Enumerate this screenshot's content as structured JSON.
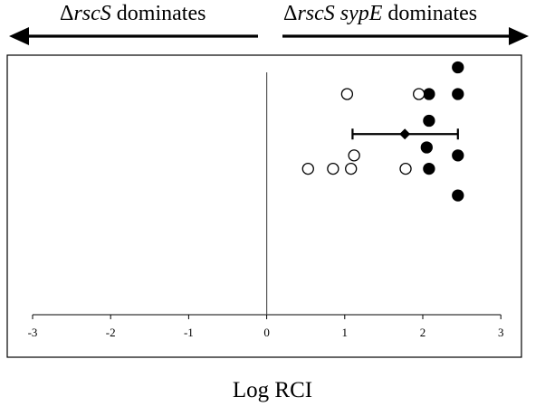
{
  "headers": {
    "left": {
      "delta": "Δ",
      "italic": "rscS",
      "text": " dominates"
    },
    "right": {
      "delta": "Δ",
      "italic": "rscS sypE",
      "text": " dominates"
    }
  },
  "chart_data": {
    "type": "scatter",
    "xlabel": "Log RCI",
    "xlim": [
      -3,
      3
    ],
    "xticks": [
      -3,
      -2,
      -1,
      0,
      1,
      2,
      3
    ],
    "xtick_labels": [
      "-3",
      "-2",
      "-1",
      "0",
      "1",
      "2",
      "3"
    ],
    "zero_line": true,
    "series": [
      {
        "marker": "filled-circle",
        "color": "#000000",
        "points": [
          [
            2.45,
            9
          ],
          [
            2.08,
            8
          ],
          [
            2.45,
            8
          ],
          [
            2.08,
            7
          ],
          [
            2.05,
            6
          ],
          [
            2.45,
            5.7
          ],
          [
            2.08,
            5.2
          ],
          [
            2.45,
            4.2
          ]
        ]
      },
      {
        "marker": "open-circle",
        "color": "#000000",
        "points": [
          [
            1.03,
            8
          ],
          [
            1.95,
            8
          ],
          [
            1.12,
            5.7
          ],
          [
            0.53,
            5.2
          ],
          [
            0.85,
            5.2
          ],
          [
            1.08,
            5.2
          ],
          [
            1.78,
            5.2
          ]
        ]
      }
    ],
    "summary": {
      "marker": "diamond",
      "mean": 1.77,
      "error_low": 1.1,
      "error_high": 2.45,
      "y": 6.5
    },
    "header_arrows": [
      {
        "direction": "left"
      },
      {
        "direction": "right"
      }
    ]
  }
}
